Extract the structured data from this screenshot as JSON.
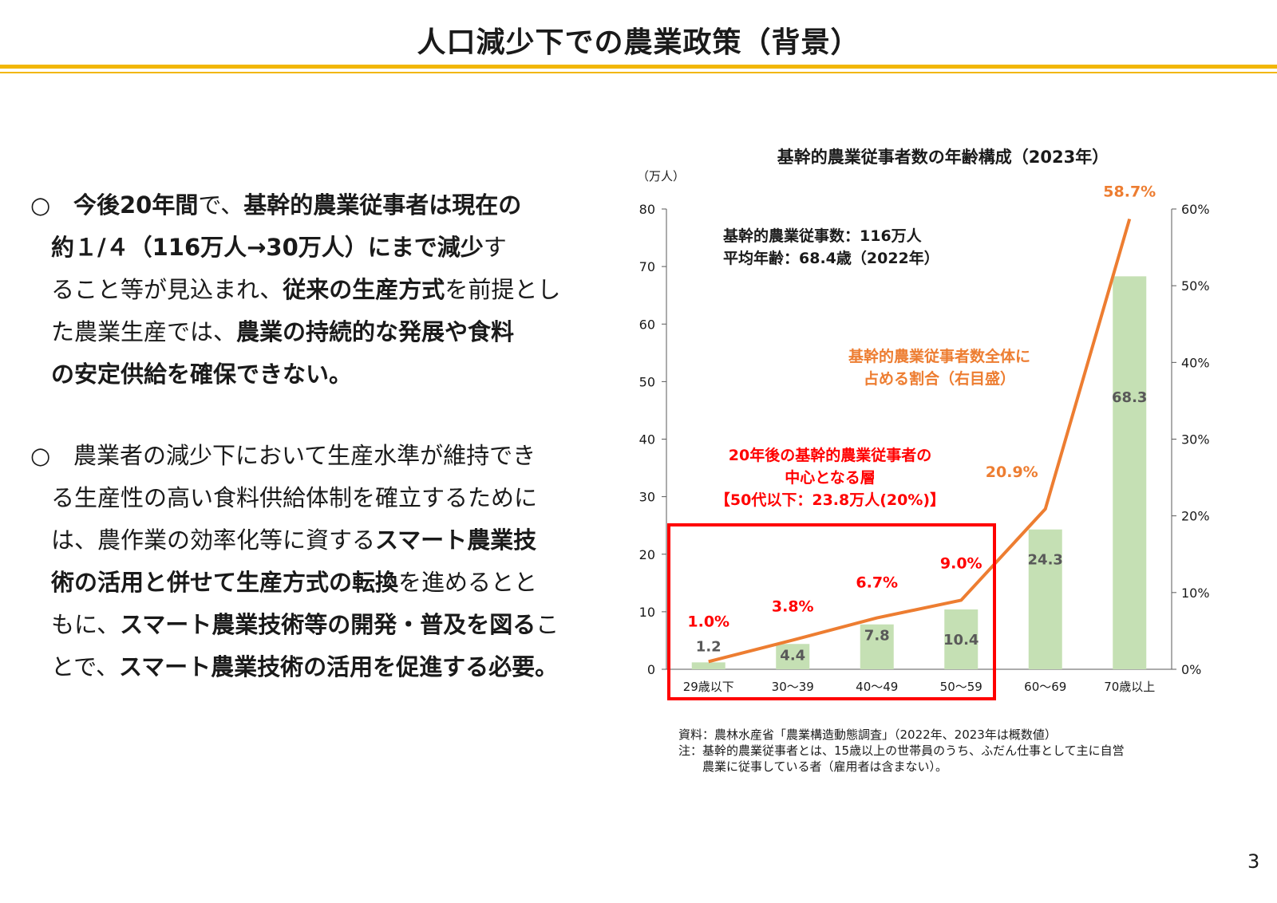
{
  "page": {
    "title": "人口減少下での農業政策（背景）",
    "page_number": "3",
    "accent_color": "#f2b705"
  },
  "paragraph1": {
    "bullet": "○",
    "l1": [
      {
        "t": "今後20年間",
        "b": true
      },
      {
        "t": "で、",
        "b": false
      },
      {
        "t": "基幹的農業従事者は現在の",
        "b": true
      }
    ],
    "l2": [
      {
        "t": "約１/４（116万人→30万人）にまで減少",
        "b": true
      },
      {
        "t": "す",
        "b": false
      }
    ],
    "l3": [
      {
        "t": "ること等が見込まれ、",
        "b": false
      },
      {
        "t": "従来の生産方式",
        "b": true
      },
      {
        "t": "を前提とし",
        "b": false
      }
    ],
    "l4": [
      {
        "t": "た農業生産では、",
        "b": false
      },
      {
        "t": "農業の持続的な発展や食料",
        "b": true
      }
    ],
    "l5": [
      {
        "t": "の安定供給を確保できない。",
        "b": true
      }
    ]
  },
  "paragraph2": {
    "bullet": "○",
    "l1": [
      {
        "t": "農業者の減少下において生産水準が維持でき",
        "b": false
      }
    ],
    "l2": [
      {
        "t": "る生産性の高い食料供給体制を確立するために",
        "b": false
      }
    ],
    "l3": [
      {
        "t": "は、農作業の効率化等に資する",
        "b": false
      },
      {
        "t": "スマート農業技",
        "b": true
      }
    ],
    "l4": [
      {
        "t": "術の活用と併せて生産方式の転換",
        "b": true
      },
      {
        "t": "を進めるとと",
        "b": false
      }
    ],
    "l5": [
      {
        "t": "もに、",
        "b": false
      },
      {
        "t": "スマート農業技術等の開発・普及を図る",
        "b": true
      },
      {
        "t": "こ",
        "b": false
      }
    ],
    "l6": [
      {
        "t": "とで、",
        "b": false
      },
      {
        "t": "スマート農業技術の活用を促進する必要。",
        "b": true
      }
    ]
  },
  "chart_data": {
    "type": "bar",
    "title": "基幹的農業従事者数の年齢構成（2023年）",
    "y_unit_label": "（万人）",
    "categories": [
      "29歳以下",
      "30～39",
      "40～49",
      "50～59",
      "60～69",
      "70歳以上"
    ],
    "bar_series": {
      "values": [
        1.2,
        4.4,
        7.8,
        10.4,
        24.3,
        68.3
      ],
      "color": "#c5e0b4"
    },
    "line_series": {
      "values": [
        1.0,
        3.8,
        6.7,
        9.0,
        20.9,
        58.7
      ],
      "labels": [
        "1.0%",
        "3.8%",
        "6.7%",
        "9.0%",
        "20.9%",
        "58.7%"
      ],
      "color": "#ed7d31",
      "axis": "right"
    },
    "ylim": [
      0,
      80
    ],
    "y_ticks": [
      "0",
      "10",
      "20",
      "30",
      "40",
      "50",
      "60",
      "70",
      "80"
    ],
    "y2lim": [
      0,
      60
    ],
    "y2_ticks": [
      "0%",
      "10%",
      "20%",
      "30%",
      "40%",
      "50%",
      "60%"
    ],
    "annotations": {
      "summary1": "基幹的農業従事数：116万人",
      "summary2": "平均年齢：68.4歳（2022年）",
      "line_note1": "基幹的農業従事者数全体に",
      "line_note2": "占める割合（右目盛）",
      "highlight1": "20年後の基幹的農業従事者の",
      "highlight2": "中心となる層",
      "highlight3": "【50代以下：23.8万人(20%)】",
      "highlight_color": "#ff0000"
    }
  },
  "source": {
    "line1": "資料：農林水産省「農業構造動態調査」（2022年、2023年は概数値）",
    "line2": "注：基幹的農業従事者とは、15歳以上の世帯員のうち、ふだん仕事として主に自営",
    "line3": "　　農業に従事している者（雇用者は含まない）。"
  }
}
